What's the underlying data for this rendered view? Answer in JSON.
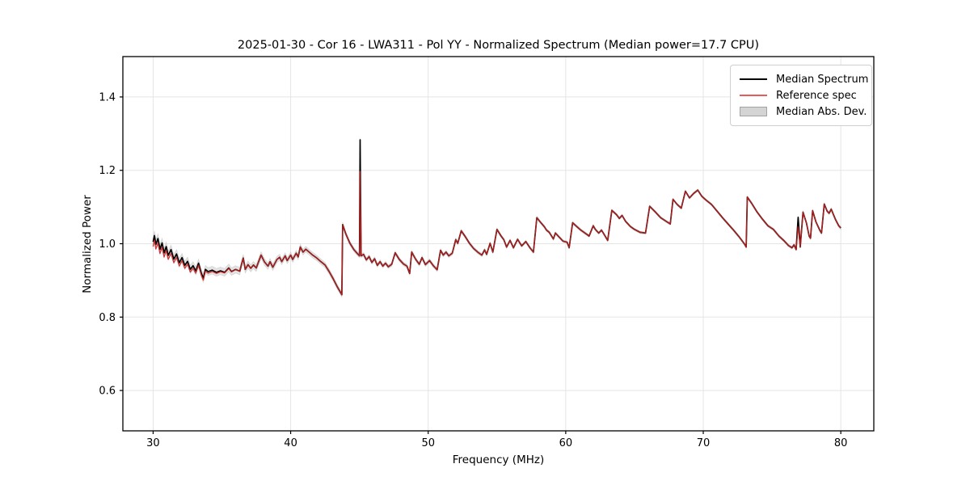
{
  "figure": {
    "background": "#ffffff"
  },
  "chart_data": {
    "type": "line",
    "title": "2025-01-30 - Cor 16 - LWA311 - Pol YY - Normalized Spectrum (Median power=17.7 CPU)",
    "xlabel": "Frequency (MHz)",
    "ylabel": "Normalized Power",
    "xlim": [
      27.8,
      82.4
    ],
    "ylim": [
      0.49,
      1.51
    ],
    "xticks": [
      30,
      40,
      50,
      60,
      70,
      80
    ],
    "yticks": [
      0.6,
      0.8,
      1.0,
      1.2,
      1.4
    ],
    "grid": true,
    "grid_color": "#e5e5e5",
    "spine_color": "#000000",
    "legend_position": "upper right",
    "series": [
      {
        "name": "Median Spectrum",
        "color": "#000000",
        "points": [
          [
            30.0,
            1.005
          ],
          [
            30.1,
            1.022
          ],
          [
            30.2,
            0.998
          ],
          [
            30.35,
            1.014
          ],
          [
            30.5,
            0.985
          ],
          [
            30.65,
            1.002
          ],
          [
            30.8,
            0.975
          ],
          [
            30.95,
            0.992
          ],
          [
            31.1,
            0.968
          ],
          [
            31.3,
            0.984
          ],
          [
            31.5,
            0.958
          ],
          [
            31.7,
            0.972
          ],
          [
            31.9,
            0.948
          ],
          [
            32.1,
            0.962
          ],
          [
            32.3,
            0.941
          ],
          [
            32.5,
            0.952
          ],
          [
            32.7,
            0.93
          ],
          [
            32.9,
            0.94
          ],
          [
            33.1,
            0.926
          ],
          [
            33.3,
            0.947
          ],
          [
            33.5,
            0.92
          ],
          [
            33.65,
            0.906
          ],
          [
            33.8,
            0.93
          ],
          [
            34.0,
            0.924
          ],
          [
            34.3,
            0.928
          ],
          [
            34.6,
            0.922
          ],
          [
            34.9,
            0.926
          ],
          [
            35.2,
            0.922
          ],
          [
            35.5,
            0.934
          ],
          [
            35.7,
            0.924
          ],
          [
            36.0,
            0.93
          ],
          [
            36.3,
            0.925
          ],
          [
            36.55,
            0.961
          ],
          [
            36.7,
            0.93
          ],
          [
            36.9,
            0.943
          ],
          [
            37.1,
            0.933
          ],
          [
            37.3,
            0.942
          ],
          [
            37.5,
            0.934
          ],
          [
            37.85,
            0.969
          ],
          [
            38.1,
            0.95
          ],
          [
            38.35,
            0.939
          ],
          [
            38.5,
            0.951
          ],
          [
            38.7,
            0.936
          ],
          [
            39.0,
            0.957
          ],
          [
            39.2,
            0.963
          ],
          [
            39.35,
            0.951
          ],
          [
            39.6,
            0.967
          ],
          [
            39.75,
            0.954
          ],
          [
            40.0,
            0.969
          ],
          [
            40.15,
            0.957
          ],
          [
            40.4,
            0.974
          ],
          [
            40.55,
            0.964
          ],
          [
            40.7,
            0.991
          ],
          [
            40.9,
            0.977
          ],
          [
            41.1,
            0.985
          ],
          [
            41.35,
            0.977
          ],
          [
            41.6,
            0.969
          ],
          [
            41.9,
            0.961
          ],
          [
            42.2,
            0.951
          ],
          [
            42.5,
            0.942
          ],
          [
            42.8,
            0.924
          ],
          [
            43.1,
            0.904
          ],
          [
            43.4,
            0.882
          ],
          [
            43.72,
            0.861
          ],
          [
            43.78,
            1.052
          ],
          [
            44.0,
            1.028
          ],
          [
            44.3,
            1.002
          ],
          [
            44.6,
            0.984
          ],
          [
            44.9,
            0.971
          ],
          [
            45.0,
            0.967
          ],
          [
            45.05,
            1.283
          ],
          [
            45.12,
            0.967
          ],
          [
            45.3,
            0.971
          ],
          [
            45.5,
            0.956
          ],
          [
            45.7,
            0.965
          ],
          [
            45.9,
            0.949
          ],
          [
            46.1,
            0.959
          ],
          [
            46.3,
            0.941
          ],
          [
            46.5,
            0.951
          ],
          [
            46.7,
            0.939
          ],
          [
            46.9,
            0.947
          ],
          [
            47.1,
            0.937
          ],
          [
            47.35,
            0.944
          ],
          [
            47.6,
            0.975
          ],
          [
            47.9,
            0.957
          ],
          [
            48.2,
            0.945
          ],
          [
            48.45,
            0.939
          ],
          [
            48.65,
            0.919
          ],
          [
            48.8,
            0.977
          ],
          [
            49.1,
            0.957
          ],
          [
            49.35,
            0.944
          ],
          [
            49.55,
            0.962
          ],
          [
            49.8,
            0.943
          ],
          [
            50.1,
            0.954
          ],
          [
            50.4,
            0.939
          ],
          [
            50.65,
            0.929
          ],
          [
            50.9,
            0.982
          ],
          [
            51.1,
            0.969
          ],
          [
            51.3,
            0.977
          ],
          [
            51.5,
            0.967
          ],
          [
            51.75,
            0.974
          ],
          [
            52.0,
            1.011
          ],
          [
            52.15,
            1.001
          ],
          [
            52.4,
            1.035
          ],
          [
            52.7,
            1.019
          ],
          [
            53.0,
            1.001
          ],
          [
            53.3,
            0.987
          ],
          [
            53.6,
            0.977
          ],
          [
            53.9,
            0.969
          ],
          [
            54.1,
            0.983
          ],
          [
            54.25,
            0.971
          ],
          [
            54.5,
            1.001
          ],
          [
            54.7,
            0.977
          ],
          [
            55.0,
            1.039
          ],
          [
            55.3,
            1.021
          ],
          [
            55.5,
            1.011
          ],
          [
            55.7,
            0.991
          ],
          [
            55.95,
            1.009
          ],
          [
            56.2,
            0.989
          ],
          [
            56.5,
            1.012
          ],
          [
            56.8,
            0.994
          ],
          [
            57.1,
            1.006
          ],
          [
            57.4,
            0.989
          ],
          [
            57.65,
            0.977
          ],
          [
            57.9,
            1.071
          ],
          [
            58.2,
            1.057
          ],
          [
            58.45,
            1.046
          ],
          [
            58.6,
            1.037
          ],
          [
            58.8,
            1.031
          ],
          [
            59.1,
            1.013
          ],
          [
            59.25,
            1.029
          ],
          [
            59.5,
            1.019
          ],
          [
            59.8,
            1.007
          ],
          [
            60.1,
            1.004
          ],
          [
            60.25,
            0.989
          ],
          [
            60.5,
            1.057
          ],
          [
            60.8,
            1.047
          ],
          [
            61.1,
            1.037
          ],
          [
            61.4,
            1.029
          ],
          [
            61.7,
            1.021
          ],
          [
            62.0,
            1.049
          ],
          [
            62.15,
            1.039
          ],
          [
            62.4,
            1.029
          ],
          [
            62.6,
            1.037
          ],
          [
            62.8,
            1.025
          ],
          [
            63.05,
            1.009
          ],
          [
            63.35,
            1.091
          ],
          [
            63.7,
            1.079
          ],
          [
            63.9,
            1.069
          ],
          [
            64.1,
            1.077
          ],
          [
            64.35,
            1.061
          ],
          [
            64.7,
            1.047
          ],
          [
            65.0,
            1.039
          ],
          [
            65.4,
            1.031
          ],
          [
            65.8,
            1.029
          ],
          [
            66.1,
            1.102
          ],
          [
            66.5,
            1.087
          ],
          [
            66.9,
            1.071
          ],
          [
            67.3,
            1.061
          ],
          [
            67.6,
            1.054
          ],
          [
            67.8,
            1.121
          ],
          [
            68.1,
            1.107
          ],
          [
            68.4,
            1.097
          ],
          [
            68.7,
            1.143
          ],
          [
            69.0,
            1.125
          ],
          [
            69.3,
            1.137
          ],
          [
            69.6,
            1.146
          ],
          [
            69.9,
            1.129
          ],
          [
            70.2,
            1.119
          ],
          [
            70.6,
            1.107
          ],
          [
            71.0,
            1.089
          ],
          [
            71.4,
            1.071
          ],
          [
            71.8,
            1.054
          ],
          [
            72.2,
            1.037
          ],
          [
            72.6,
            1.019
          ],
          [
            73.0,
            0.999
          ],
          [
            73.12,
            0.991
          ],
          [
            73.2,
            1.127
          ],
          [
            73.5,
            1.111
          ],
          [
            73.9,
            1.087
          ],
          [
            74.3,
            1.067
          ],
          [
            74.7,
            1.049
          ],
          [
            75.1,
            1.039
          ],
          [
            75.5,
            1.021
          ],
          [
            75.9,
            1.007
          ],
          [
            76.2,
            0.995
          ],
          [
            76.45,
            0.989
          ],
          [
            76.6,
            0.997
          ],
          [
            76.75,
            0.984
          ],
          [
            76.9,
            1.072
          ],
          [
            77.05,
            0.991
          ],
          [
            77.25,
            1.086
          ],
          [
            77.5,
            1.057
          ],
          [
            77.7,
            1.021
          ],
          [
            77.8,
            1.015
          ],
          [
            77.95,
            1.09
          ],
          [
            78.2,
            1.059
          ],
          [
            78.5,
            1.035
          ],
          [
            78.6,
            1.029
          ],
          [
            78.8,
            1.108
          ],
          [
            79.0,
            1.089
          ],
          [
            79.15,
            1.083
          ],
          [
            79.3,
            1.094
          ],
          [
            79.6,
            1.067
          ],
          [
            79.85,
            1.049
          ],
          [
            80.0,
            1.043
          ]
        ]
      },
      {
        "name": "Reference spec",
        "color": "#e85b5b",
        "line_color": "#cc2222",
        "opacity": 0.85,
        "derived_from": "Median Spectrum",
        "offset_taper": {
          "start_freq": 30.0,
          "start_offset": -0.013,
          "end_freq": 36.0,
          "end_offset": 0.0
        },
        "overrides": [
          [
            45.05,
            1.197
          ],
          [
            76.9,
            1.046
          ]
        ]
      },
      {
        "name": "Median Abs. Dev.",
        "color": "#d4d4d4",
        "edge_color": "#a3a3a3",
        "band_around": "Median Spectrum",
        "band_halfwidth": [
          [
            30,
            0.013
          ],
          [
            33,
            0.011
          ],
          [
            36,
            0.01
          ],
          [
            40,
            0.008
          ],
          [
            43,
            0.007
          ],
          [
            45,
            0.005
          ],
          [
            50,
            0.005
          ],
          [
            55,
            0.004
          ],
          [
            60,
            0.0035
          ],
          [
            70,
            0.003
          ],
          [
            80,
            0.004
          ]
        ]
      }
    ]
  }
}
